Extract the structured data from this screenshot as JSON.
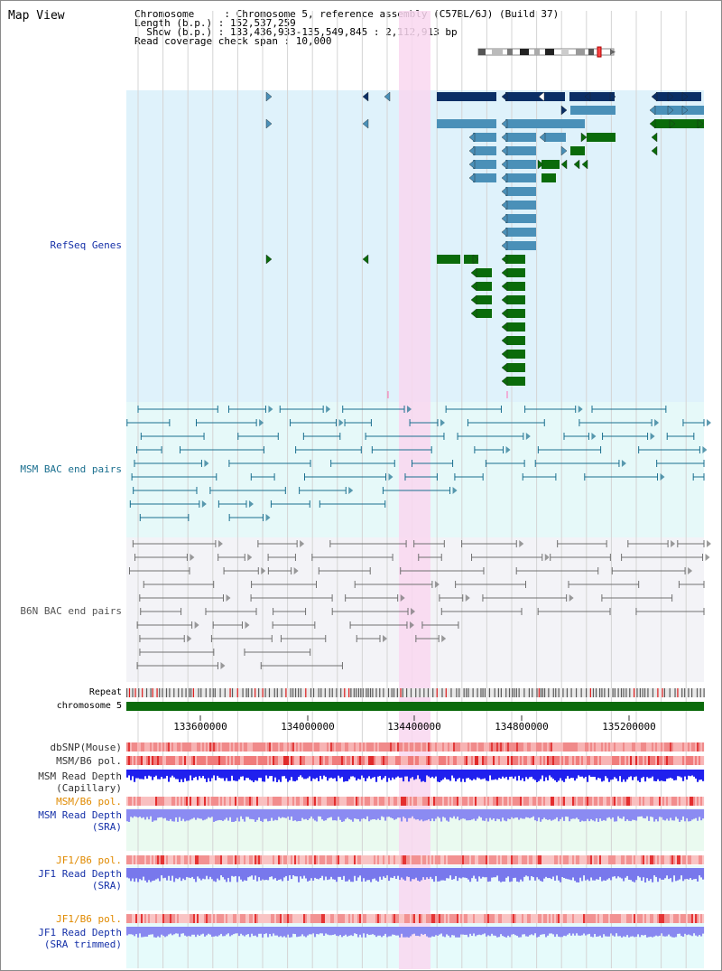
{
  "page": {
    "title": "Map View"
  },
  "info": {
    "chromosome_line": "Chromosome     : Chromosome 5, reference assembly (C57BL/6J) (Build 37)",
    "length_line": "Length (b.p.) : 152,537,259",
    "show_line": "  Show (b.p.) : 133,436,933-135,549,845 : 2,112,913 bp",
    "coverage_line": "Read coverage check span : 10,000"
  },
  "tracks": {
    "refseq": "RefSeq Genes",
    "msm_bac": "MSM BAC end pairs",
    "b6n_bac": "B6N BAC end pairs",
    "repeat": "Repeat",
    "chromosome": "chromosome 5",
    "dbsnp": "dbSNP(Mouse)",
    "msm_b6_pol_1": "MSM/B6 pol.",
    "msm_read_depth_cap_1": "MSM Read Depth",
    "msm_read_depth_cap_2": "(Capillary)",
    "msm_b6_pol_2": "MSM/B6 pol.",
    "msm_read_depth_sra_1": "MSM Read Depth",
    "msm_read_depth_sra_2": "(SRA)",
    "jf1_b6_pol_1": "JF1/B6 pol.",
    "jf1_read_depth_sra_1": "JF1 Read Depth",
    "jf1_read_depth_sra_2": "(SRA)",
    "jf1_b6_pol_2": "JF1/B6 pol.",
    "jf1_read_depth_trim_1": "JF1 Read Depth",
    "jf1_read_depth_trim_2": "(SRA trimmed)"
  },
  "axis": {
    "ticks": [
      "133600000",
      "134000000",
      "134400000",
      "134800000",
      "135200000"
    ]
  },
  "colors": {
    "refseq_bg": "#dff2fb",
    "msm_bg": "#e6f9f9",
    "b6n_bg": "#f3f3f7",
    "highlight": "#f9d7f0",
    "gene_dark": "#0b2f66",
    "gene_mid": "#4a90b8",
    "gene_green": "#0a6b0a",
    "msm_pair": "#1a6f8f",
    "b6n_pair": "#707070",
    "track_label_blue": "#1530a8",
    "track_label_orange": "#e08a00"
  }
}
